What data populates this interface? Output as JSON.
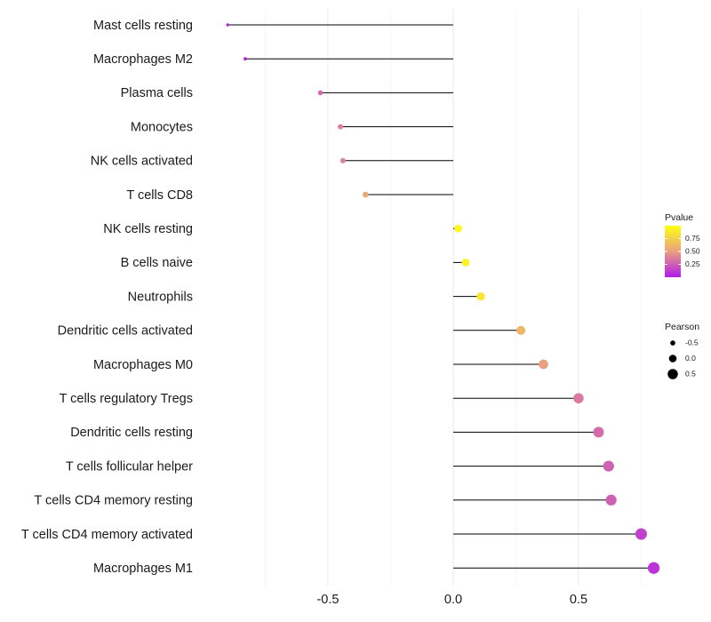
{
  "chart_data": {
    "type": "lollipop",
    "title": "",
    "xlabel": "",
    "ylabel": "",
    "xlim": [
      -1.0,
      0.83
    ],
    "xticks": [
      -0.5,
      0.0,
      0.5
    ],
    "xtick_labels": [
      "-0.5",
      "0.0",
      "0.5"
    ],
    "grid": true,
    "points": [
      {
        "category": "Mast cells resting",
        "value": -0.9,
        "pvalue": 0.01
      },
      {
        "category": "Macrophages M2",
        "value": -0.83,
        "pvalue": 0.03
      },
      {
        "category": "Plasma cells",
        "value": -0.53,
        "pvalue": 0.3
      },
      {
        "category": "Monocytes",
        "value": -0.45,
        "pvalue": 0.38
      },
      {
        "category": "NK cells activated",
        "value": -0.44,
        "pvalue": 0.4
      },
      {
        "category": "T cells CD8",
        "value": -0.35,
        "pvalue": 0.55
      },
      {
        "category": "NK cells resting",
        "value": 0.02,
        "pvalue": 0.96
      },
      {
        "category": "B cells naive",
        "value": 0.05,
        "pvalue": 0.93
      },
      {
        "category": "Neutrophils",
        "value": 0.11,
        "pvalue": 0.87
      },
      {
        "category": "Dendritic cells activated",
        "value": 0.27,
        "pvalue": 0.62
      },
      {
        "category": "Macrophages M0",
        "value": 0.36,
        "pvalue": 0.5
      },
      {
        "category": "T cells regulatory  Tregs ",
        "value": 0.5,
        "pvalue": 0.35
      },
      {
        "category": "Dendritic cells resting",
        "value": 0.58,
        "pvalue": 0.3
      },
      {
        "category": "T cells follicular helper",
        "value": 0.62,
        "pvalue": 0.27
      },
      {
        "category": "T cells CD4 memory resting",
        "value": 0.63,
        "pvalue": 0.26
      },
      {
        "category": "T cells CD4 memory activated",
        "value": 0.75,
        "pvalue": 0.14
      },
      {
        "category": "Macrophages M1",
        "value": 0.8,
        "pvalue": 0.09
      }
    ],
    "legend": {
      "placement": "right",
      "color_title": "Pvalue",
      "color_ticks": [
        0.25,
        0.5,
        0.75
      ],
      "color_tick_labels": [
        "0.25",
        "0.50",
        "0.75"
      ],
      "color_low": "#b21bea",
      "color_mid": "#e9a080",
      "color_high": "#ffff14",
      "color_range": [
        0.0,
        1.0
      ],
      "size_title": "Pearson",
      "size_entries": [
        {
          "label": "-0.5",
          "value": -0.5
        },
        {
          "label": "0.0",
          "value": 0.0
        },
        {
          "label": "0.5",
          "value": 0.5
        }
      ]
    }
  }
}
